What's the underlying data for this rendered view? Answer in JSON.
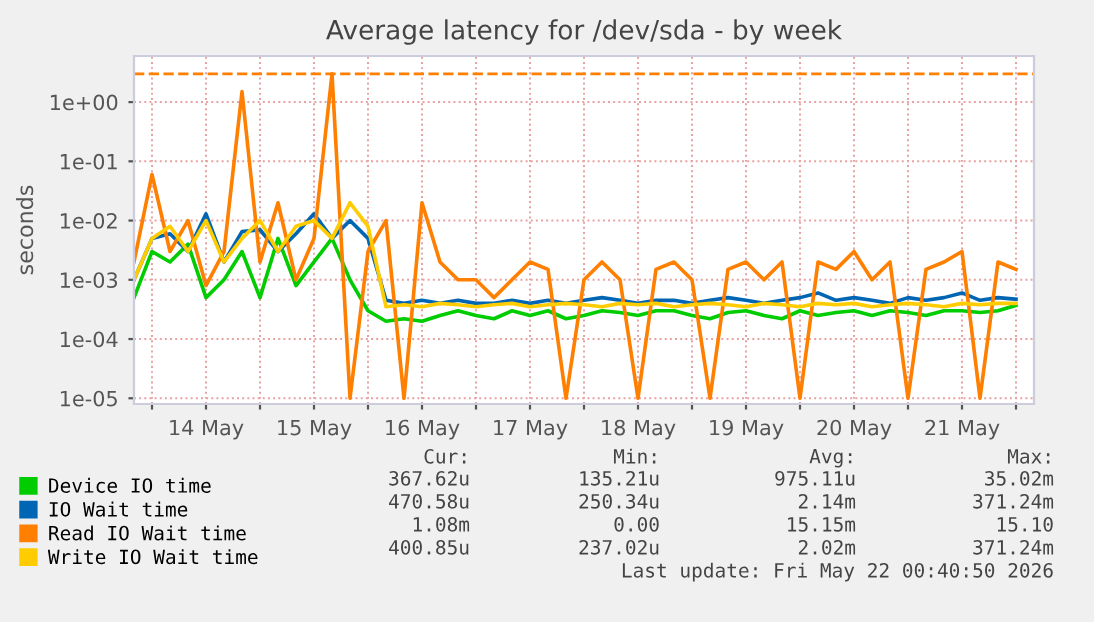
{
  "chart_data": {
    "type": "line",
    "title": "Average latency for /dev/sda - by week",
    "ylabel": "seconds",
    "log": "y",
    "grid": true,
    "legend": "bottom",
    "line_style": "solid",
    "marker": "none",
    "xlim": [
      "2026-05-13T20:00",
      "2026-05-22T04:00"
    ],
    "xticks": [
      {
        "value": "2026-05-14T00:00",
        "label": null
      },
      {
        "value": "2026-05-14T12:00",
        "label": "14 May"
      },
      {
        "value": "2026-05-15T00:00",
        "label": null
      },
      {
        "value": "2026-05-15T12:00",
        "label": "15 May"
      },
      {
        "value": "2026-05-16T00:00",
        "label": null
      },
      {
        "value": "2026-05-16T12:00",
        "label": "16 May"
      },
      {
        "value": "2026-05-17T00:00",
        "label": null
      },
      {
        "value": "2026-05-17T12:00",
        "label": "17 May"
      },
      {
        "value": "2026-05-18T00:00",
        "label": null
      },
      {
        "value": "2026-05-18T12:00",
        "label": "18 May"
      },
      {
        "value": "2026-05-19T00:00",
        "label": null
      },
      {
        "value": "2026-05-19T12:00",
        "label": "19 May"
      },
      {
        "value": "2026-05-20T00:00",
        "label": null
      },
      {
        "value": "2026-05-20T12:00",
        "label": "20 May"
      },
      {
        "value": "2026-05-21T00:00",
        "label": null
      },
      {
        "value": "2026-05-21T12:00",
        "label": "21 May"
      },
      {
        "value": "2026-05-22T00:00",
        "label": null
      }
    ],
    "ylim": [
      8e-06,
      6
    ],
    "yticks": [
      {
        "value": 1e-05,
        "label": "1e-05"
      },
      {
        "value": 0.0001,
        "label": "1e-04"
      },
      {
        "value": 0.001,
        "label": "1e-03"
      },
      {
        "value": 0.01,
        "label": "1e-02"
      },
      {
        "value": 0.1,
        "label": "1e-01"
      },
      {
        "value": 1,
        "label": "1e+00"
      }
    ],
    "ref_lines": [
      {
        "axis": "y",
        "value": 3,
        "color": "#ff7f00",
        "line_style": "dashed"
      }
    ],
    "x": [
      "2026-05-13T20:00",
      "2026-05-14T00:00",
      "2026-05-14T04:00",
      "2026-05-14T08:00",
      "2026-05-14T12:00",
      "2026-05-14T16:00",
      "2026-05-14T20:00",
      "2026-05-15T00:00",
      "2026-05-15T04:00",
      "2026-05-15T08:00",
      "2026-05-15T12:00",
      "2026-05-15T16:00",
      "2026-05-15T20:00",
      "2026-05-16T00:00",
      "2026-05-16T04:00",
      "2026-05-16T08:00",
      "2026-05-16T12:00",
      "2026-05-16T16:00",
      "2026-05-16T20:00",
      "2026-05-17T00:00",
      "2026-05-17T04:00",
      "2026-05-17T08:00",
      "2026-05-17T12:00",
      "2026-05-17T16:00",
      "2026-05-17T20:00",
      "2026-05-18T00:00",
      "2026-05-18T04:00",
      "2026-05-18T08:00",
      "2026-05-18T12:00",
      "2026-05-18T16:00",
      "2026-05-18T20:00",
      "2026-05-19T00:00",
      "2026-05-19T04:00",
      "2026-05-19T08:00",
      "2026-05-19T12:00",
      "2026-05-19T16:00",
      "2026-05-19T20:00",
      "2026-05-20T00:00",
      "2026-05-20T04:00",
      "2026-05-20T08:00",
      "2026-05-20T12:00",
      "2026-05-20T16:00",
      "2026-05-20T20:00",
      "2026-05-21T00:00",
      "2026-05-21T04:00",
      "2026-05-21T08:00",
      "2026-05-21T12:00",
      "2026-05-21T16:00",
      "2026-05-21T20:00",
      "2026-05-22T00:00"
    ],
    "series": [
      {
        "name": "Device IO time",
        "color": "#00cc00",
        "values": [
          0.0005,
          0.003,
          0.002,
          0.004,
          0.0005,
          0.001,
          0.003,
          0.0005,
          0.005,
          0.0008,
          0.002,
          0.005,
          0.001,
          0.0003,
          0.0002,
          0.00022,
          0.0002,
          0.00025,
          0.0003,
          0.00025,
          0.00022,
          0.0003,
          0.00025,
          0.0003,
          0.00022,
          0.00025,
          0.0003,
          0.00028,
          0.00025,
          0.0003,
          0.0003,
          0.00025,
          0.00022,
          0.00028,
          0.0003,
          0.00025,
          0.00022,
          0.0003,
          0.00025,
          0.00028,
          0.0003,
          0.00025,
          0.0003,
          0.00028,
          0.00025,
          0.0003,
          0.0003,
          0.00028,
          0.0003,
          0.00037
        ]
      },
      {
        "name": "IO Wait time",
        "color": "#0066b3",
        "values": [
          0.001,
          0.005,
          0.006,
          0.003,
          0.013,
          0.002,
          0.0065,
          0.007,
          0.003,
          0.006,
          0.013,
          0.005,
          0.01,
          0.005,
          0.00045,
          0.0004,
          0.00045,
          0.0004,
          0.00045,
          0.0004,
          0.0004,
          0.00045,
          0.0004,
          0.00045,
          0.0004,
          0.00045,
          0.0005,
          0.00045,
          0.0004,
          0.00045,
          0.00045,
          0.0004,
          0.00045,
          0.0005,
          0.00045,
          0.0004,
          0.00045,
          0.0005,
          0.0006,
          0.00045,
          0.0005,
          0.00045,
          0.0004,
          0.0005,
          0.00045,
          0.0005,
          0.0006,
          0.00045,
          0.0005,
          0.00047
        ]
      },
      {
        "name": "Read IO Wait time",
        "color": "#ff7f00",
        "values": [
          0.002,
          0.06,
          0.003,
          0.01,
          0.0008,
          0.003,
          1.5,
          0.002,
          0.02,
          0.001,
          0.005,
          3.0,
          1e-05,
          0.003,
          0.01,
          1e-05,
          0.02,
          0.002,
          0.001,
          0.001,
          0.0005,
          0.001,
          0.002,
          0.0015,
          1e-05,
          0.001,
          0.002,
          0.001,
          1e-05,
          0.0015,
          0.002,
          0.001,
          1e-05,
          0.0015,
          0.002,
          0.001,
          0.002,
          1e-05,
          0.002,
          0.0015,
          0.003,
          0.001,
          0.002,
          1e-05,
          0.0015,
          0.002,
          0.003,
          1e-05,
          0.002,
          0.0015
        ]
      },
      {
        "name": "Write IO Wait time",
        "color": "#ffcc00",
        "values": [
          0.001,
          0.005,
          0.008,
          0.003,
          0.01,
          0.002,
          0.005,
          0.01,
          0.003,
          0.008,
          0.01,
          0.005,
          0.02,
          0.008,
          0.00035,
          0.00038,
          0.00035,
          0.0004,
          0.00038,
          0.00035,
          0.00038,
          0.0004,
          0.00035,
          0.00038,
          0.0004,
          0.00038,
          0.00035,
          0.0004,
          0.00038,
          0.0004,
          0.00035,
          0.00038,
          0.0004,
          0.00038,
          0.00035,
          0.0004,
          0.00038,
          0.00035,
          0.0004,
          0.00038,
          0.0004,
          0.00035,
          0.00038,
          0.0004,
          0.00038,
          0.00035,
          0.0004,
          0.00038,
          0.0004,
          0.0004
        ]
      }
    ],
    "annotations": [
      "Cur:",
      "Min:",
      "Avg:",
      "Max:",
      "367.62u",
      "135.21u",
      "975.11u",
      "35.02m",
      "470.58u",
      "250.34u",
      "2.14m",
      "371.24m",
      "1.08m",
      "0.00",
      "15.15m",
      "15.10",
      "400.85u",
      "237.02u",
      "2.02m",
      "371.24m",
      "Last update: Fri May 22 00:40:50 2026"
    ]
  }
}
